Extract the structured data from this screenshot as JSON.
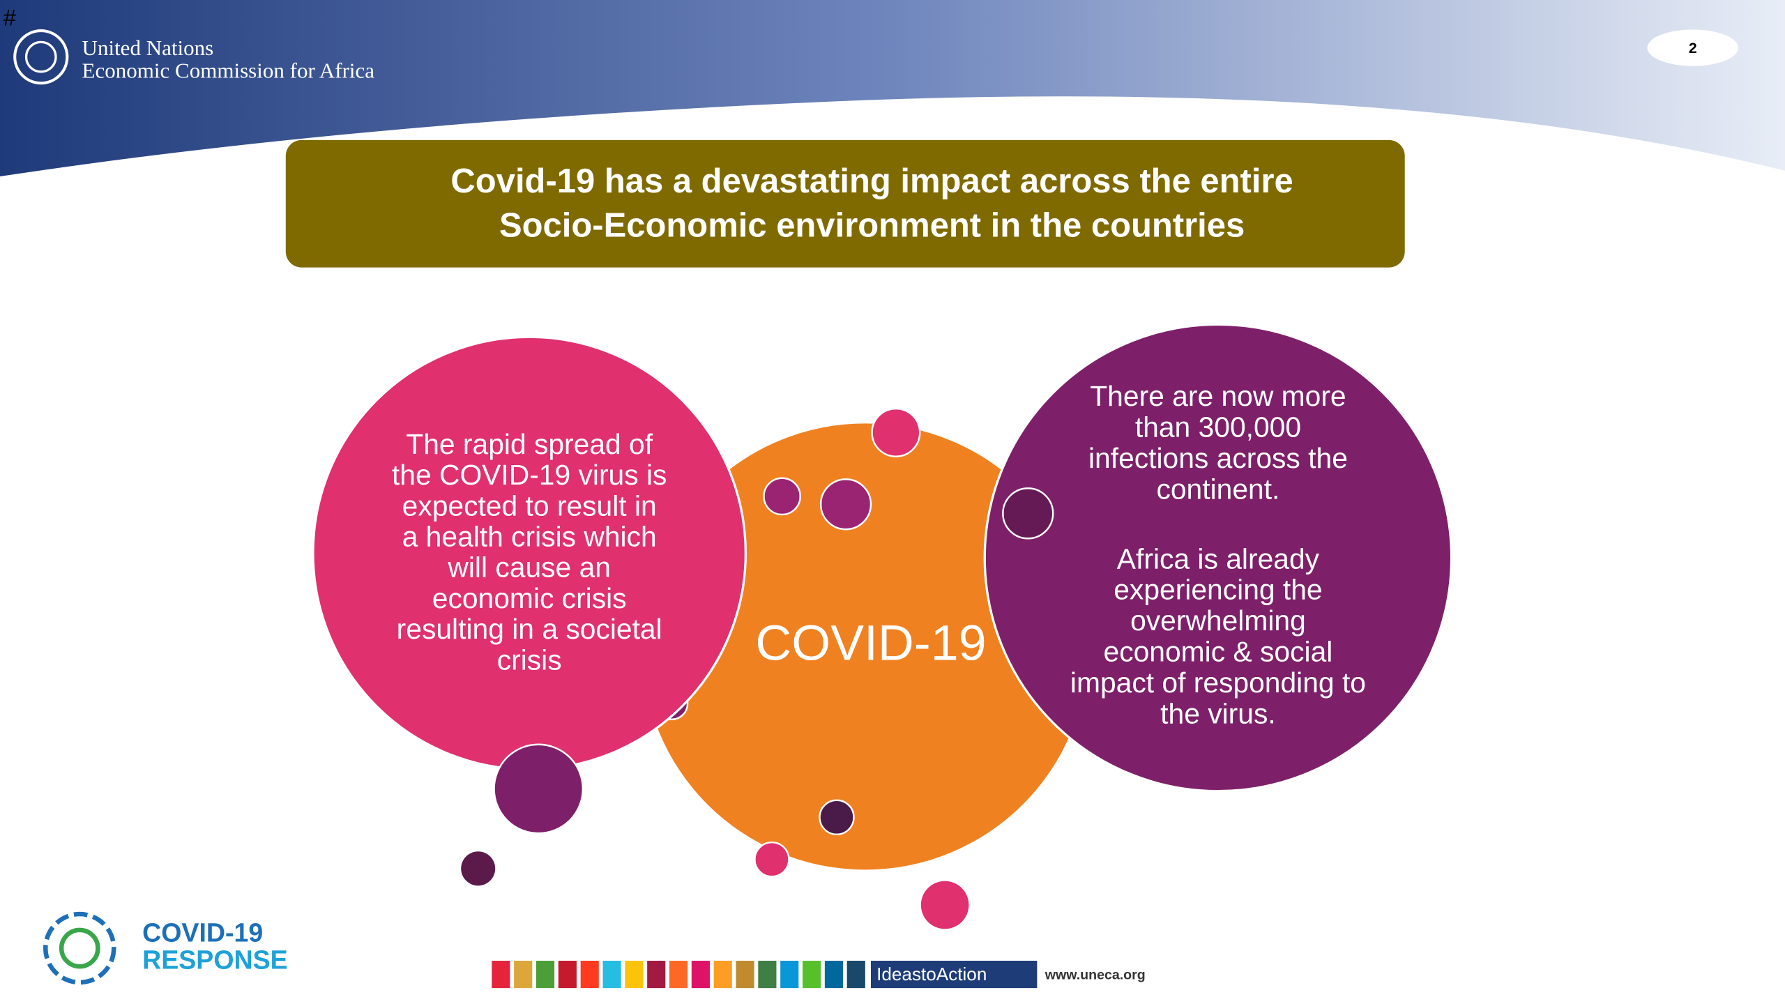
{
  "header": {
    "corner_mark": "#",
    "org_line1": "United Nations",
    "org_line2": "Economic Commission for Africa",
    "page_number": 2
  },
  "title": {
    "lines": [
      "Covid-19 has a devastating impact across the entire",
      "Socio-Economic environment in the countries"
    ]
  },
  "left_circle": {
    "lines": [
      "The rapid spread of",
      "the COVID-19 virus is",
      "expected to result in",
      "a health crisis which",
      "will cause an",
      "economic crisis",
      "resulting in a societal",
      "crisis"
    ]
  },
  "center_circle": {
    "label": "COVID-19"
  },
  "right_circle": {
    "paragraphs": [
      [
        "There are now more",
        "than  300,000",
        "infections across the",
        "continent."
      ],
      [
        "Africa is already",
        "experiencing the",
        "overwhelming",
        "economic & social",
        "impact of responding to",
        "the virus."
      ]
    ]
  },
  "footer": {
    "logo_line1": "COVID-19",
    "logo_line2": "RESPONSE",
    "tagline": "IdeastoAction",
    "website": "www.uneca.org"
  }
}
